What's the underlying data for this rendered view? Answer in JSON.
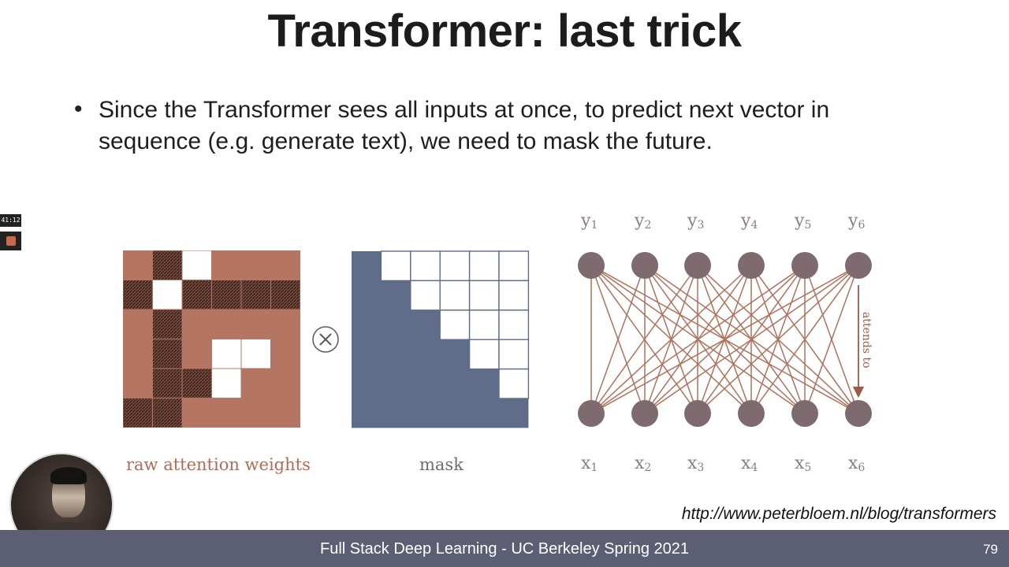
{
  "slide": {
    "title": "Transformer: last trick",
    "bullet_marker": "•",
    "bullet_text": "Since the Transformer sees all inputs at once, to predict next vector in sequence (e.g. generate text), we need to mask the future.",
    "operator_symbol": "⊗",
    "caption_raw": "raw attention weights",
    "caption_mask": "mask",
    "attends_label": "attends to",
    "output_labels": [
      "y1",
      "y2",
      "y3",
      "y4",
      "y5",
      "y6"
    ],
    "input_labels": [
      "x1",
      "x2",
      "x3",
      "x4",
      "x5",
      "x6"
    ],
    "url": "http://www.peterbloem.nl/blog/transformers"
  },
  "footer": {
    "text": "Full Stack Deep Learning - UC Berkeley Spring 2021",
    "page_number": "79"
  },
  "recording": {
    "timer": "41:12"
  },
  "colors": {
    "raw_weight": "#b57563",
    "mask_fill": "#5f6c8a",
    "node": "#7e6a6f",
    "edge": "#b0705c"
  },
  "matrices": {
    "raw_grid_legend": "0 = salmon, 1 = dark hatched, 2 = white",
    "raw_grid": [
      [
        0,
        1,
        2,
        0,
        0,
        0
      ],
      [
        1,
        2,
        1,
        1,
        1,
        1
      ],
      [
        0,
        1,
        0,
        0,
        0,
        0
      ],
      [
        0,
        1,
        0,
        2,
        2,
        0
      ],
      [
        0,
        1,
        1,
        2,
        0,
        0
      ],
      [
        1,
        1,
        0,
        0,
        0,
        0
      ]
    ]
  }
}
